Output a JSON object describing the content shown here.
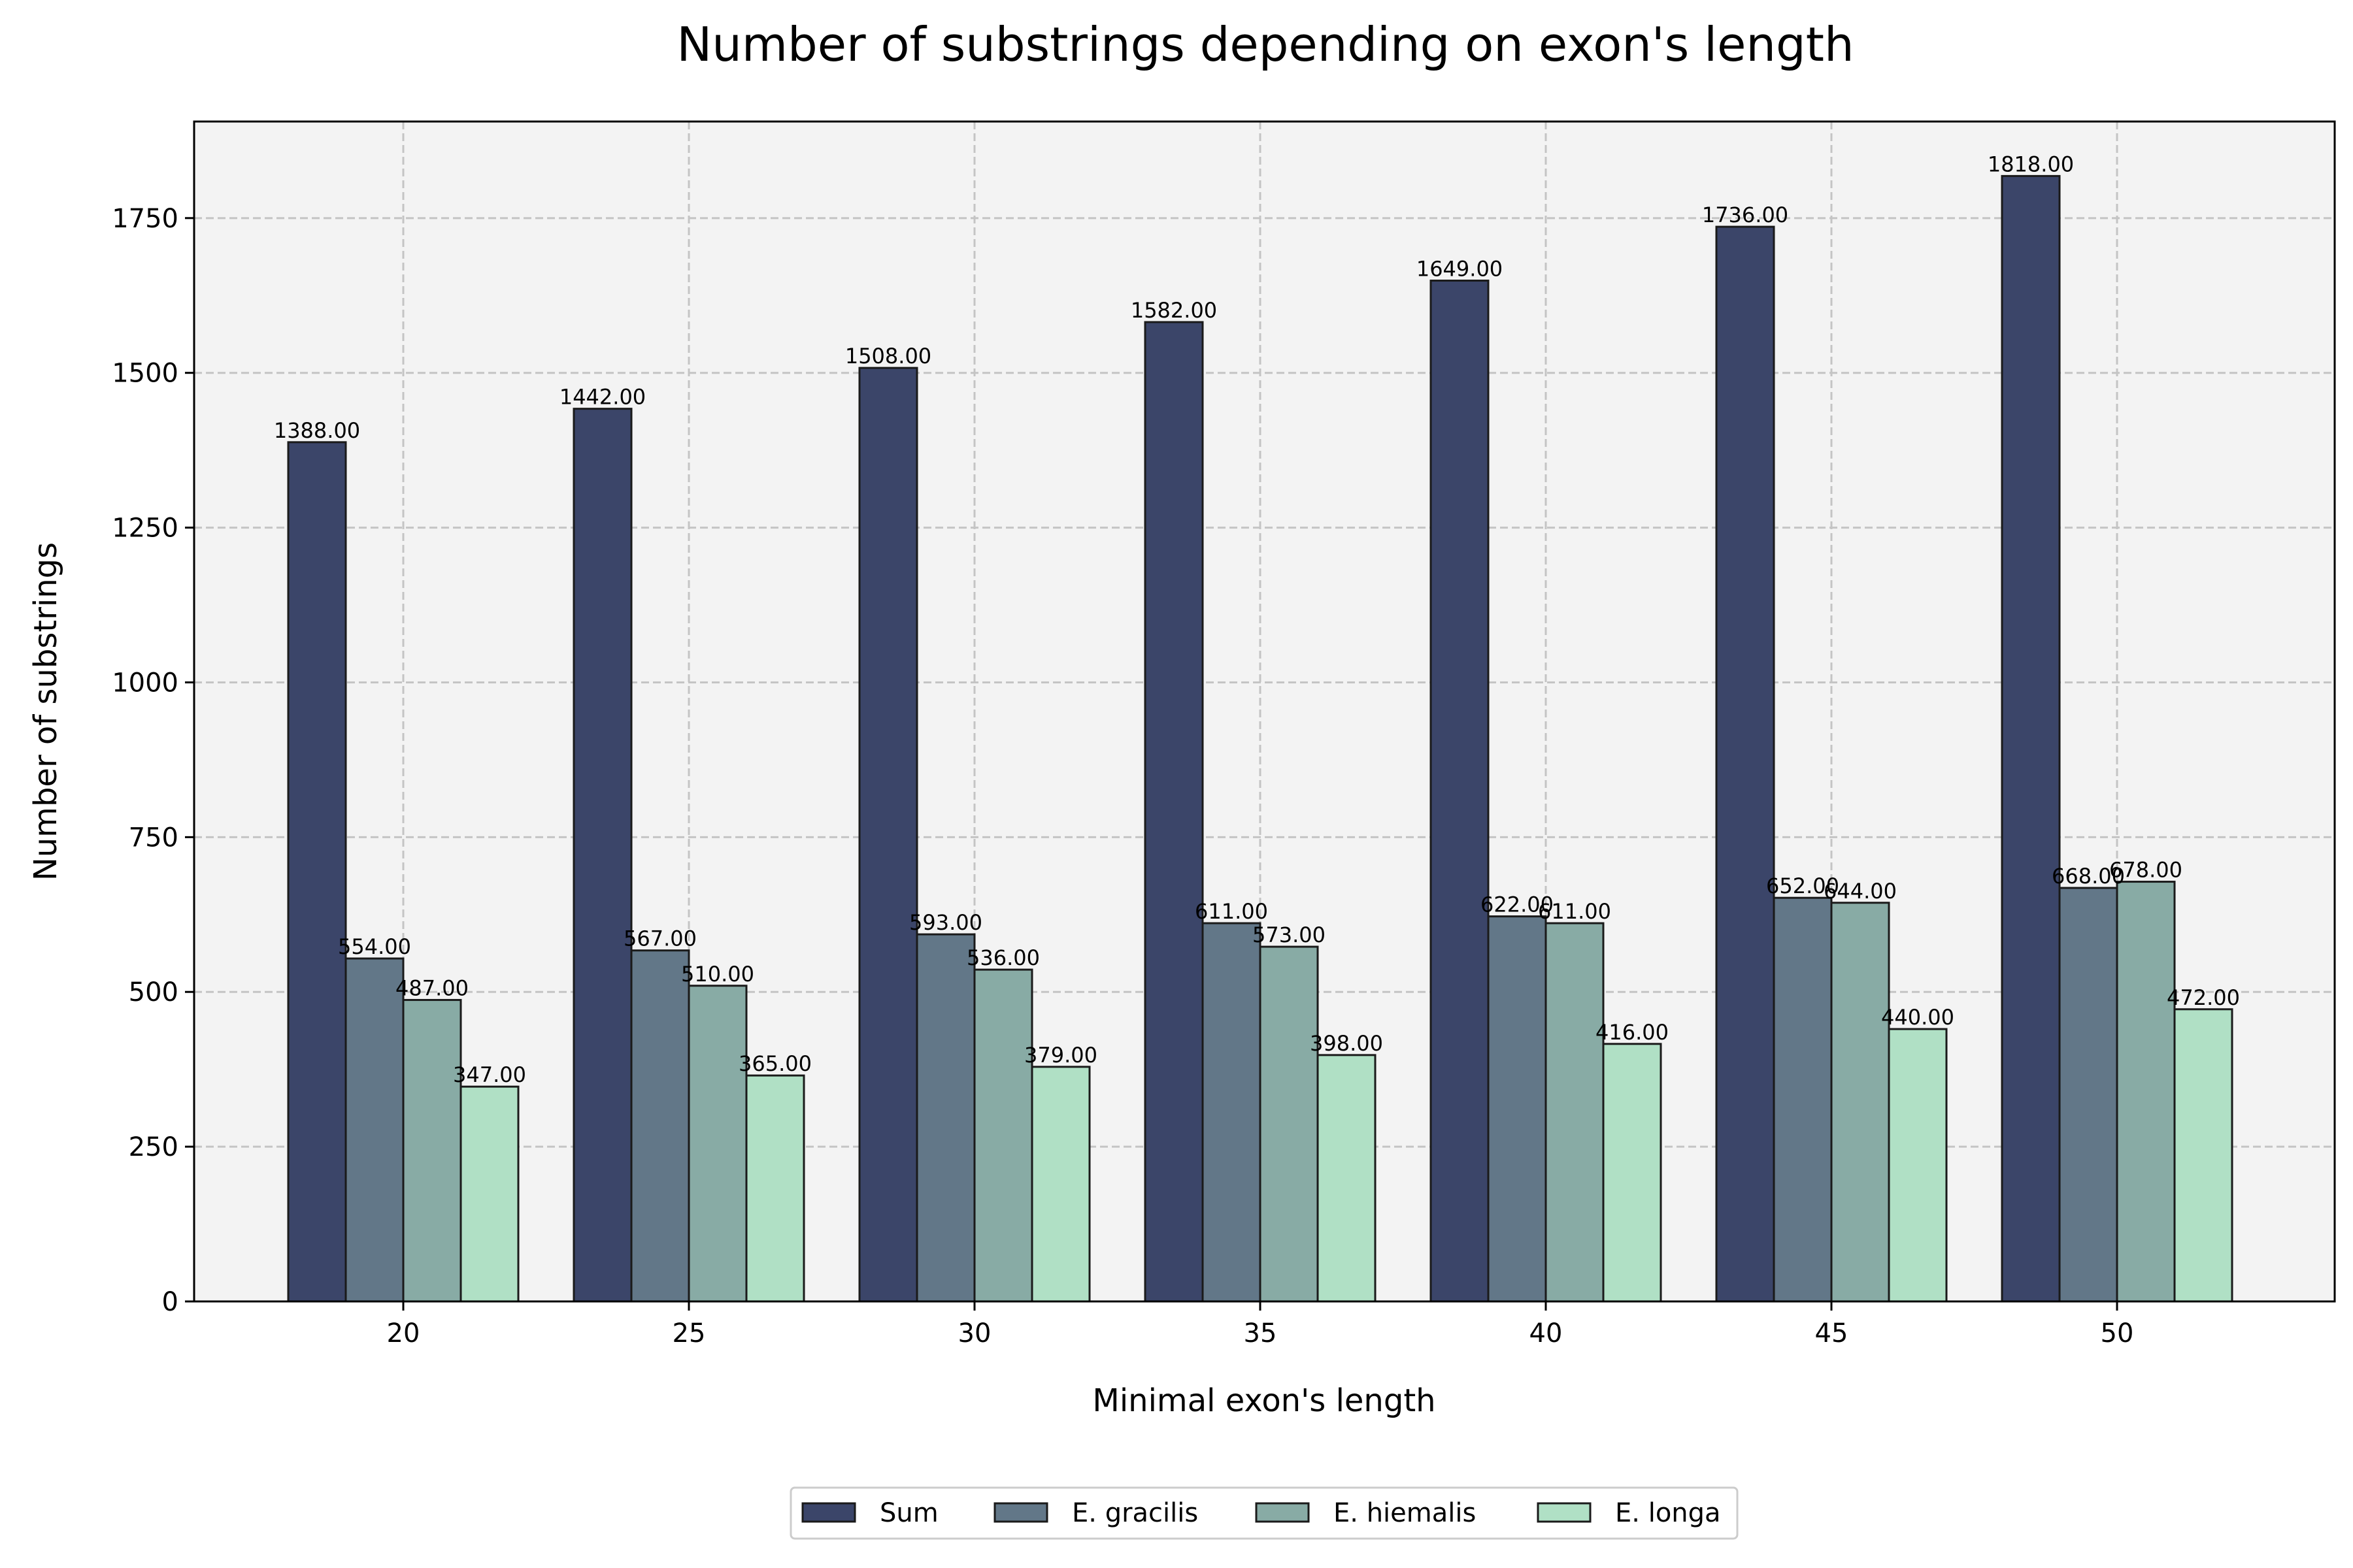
{
  "chart_data": {
    "type": "bar",
    "title": "Number of substrings depending on exon's length",
    "xlabel": "Minimal exon's length",
    "ylabel": "Number of substrings",
    "categories": [
      "20",
      "25",
      "30",
      "35",
      "40",
      "45",
      "50"
    ],
    "ylim": [
      0,
      1906
    ],
    "yticks": [
      "0",
      "250",
      "500",
      "750",
      "1000",
      "1250",
      "1500",
      "1750"
    ],
    "grid": true,
    "legend_position": "bottom-center",
    "value_label_format": "2 decimals",
    "series": [
      {
        "name": "Sum",
        "color": "#3b4569",
        "values": [
          1388,
          1442,
          1508,
          1582,
          1649,
          1736,
          1818
        ]
      },
      {
        "name": "E. gracilis",
        "color": "#627788",
        "values": [
          554,
          567,
          593,
          611,
          622,
          652,
          668
        ]
      },
      {
        "name": "E. hiemalis",
        "color": "#88aba5",
        "values": [
          487,
          510,
          536,
          573,
          611,
          644,
          678
        ]
      },
      {
        "name": "E. longa",
        "color": "#b0e0c5",
        "values": [
          347,
          365,
          379,
          398,
          416,
          440,
          472
        ]
      }
    ],
    "colors": {
      "plot_background": "#f3f3f3",
      "grid": "#c4c4c4",
      "bar_edge": "#1a1a1a"
    }
  }
}
